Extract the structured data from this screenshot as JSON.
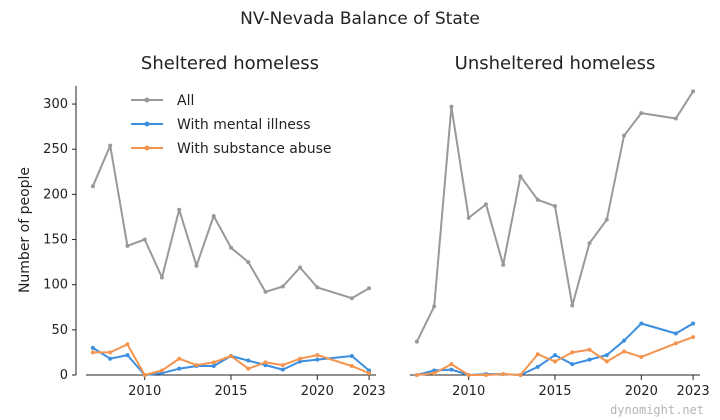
{
  "title": "NV-Nevada Balance of State",
  "ylabel": "Number of people",
  "watermark": "dynomight.net",
  "colors": {
    "All": "#999999",
    "With mental illness": "#3b8ee0",
    "With substance abuse": "#f5944e"
  },
  "chart_data": [
    {
      "type": "line",
      "title": "Sheltered homeless",
      "ylabel": "Number of people",
      "ylim": [
        0,
        320
      ],
      "yticks": [
        0,
        50,
        100,
        150,
        200,
        250,
        300
      ],
      "xlim": [
        2006.6,
        2023.4
      ],
      "xticks": [
        2010,
        2015,
        2020,
        2023
      ],
      "legend": {
        "placement": "top-left",
        "entries": [
          "All",
          "With mental illness",
          "With substance abuse"
        ]
      },
      "grid": false,
      "series": [
        {
          "name": "All",
          "color": "#999999",
          "x": [
            2007,
            2008,
            2009,
            2010,
            2011,
            2012,
            2013,
            2014,
            2015,
            2016,
            2017,
            2018,
            2019,
            2020,
            2022,
            2023
          ],
          "values": [
            209,
            254,
            143,
            150,
            108,
            183,
            121,
            176,
            141,
            125,
            92,
            98,
            119,
            97,
            85,
            96
          ]
        },
        {
          "name": "With mental illness",
          "color": "#3b8ee0",
          "x": [
            2007,
            2008,
            2009,
            2010,
            2011,
            2012,
            2013,
            2014,
            2015,
            2016,
            2017,
            2018,
            2019,
            2020,
            2022,
            2023
          ],
          "values": [
            30,
            18,
            22,
            0,
            2,
            7,
            10,
            10,
            21,
            16,
            11,
            6,
            15,
            17,
            21,
            5
          ]
        },
        {
          "name": "With substance abuse",
          "color": "#f5944e",
          "x": [
            2007,
            2008,
            2009,
            2010,
            2011,
            2012,
            2013,
            2014,
            2015,
            2016,
            2017,
            2018,
            2019,
            2020,
            2022,
            2023
          ],
          "values": [
            25,
            25,
            34,
            0,
            5,
            18,
            11,
            14,
            21,
            7,
            14,
            11,
            18,
            22,
            10,
            2
          ]
        }
      ]
    },
    {
      "type": "line",
      "title": "Unsheltered homeless",
      "ylim": [
        0,
        320
      ],
      "xlim": [
        2006.6,
        2023.4
      ],
      "xticks": [
        2010,
        2015,
        2020,
        2023
      ],
      "grid": false,
      "series": [
        {
          "name": "All",
          "color": "#999999",
          "x": [
            2007,
            2008,
            2009,
            2010,
            2011,
            2012,
            2013,
            2014,
            2015,
            2016,
            2017,
            2018,
            2019,
            2020,
            2022,
            2023
          ],
          "values": [
            37,
            76,
            297,
            174,
            189,
            122,
            220,
            194,
            187,
            77,
            146,
            172,
            265,
            290,
            284,
            314
          ]
        },
        {
          "name": "With mental illness",
          "color": "#3b8ee0",
          "x": [
            2007,
            2008,
            2009,
            2010,
            2011,
            2012,
            2013,
            2014,
            2015,
            2016,
            2017,
            2018,
            2019,
            2020,
            2022,
            2023
          ],
          "values": [
            0,
            5,
            6,
            0,
            1,
            1,
            0,
            9,
            22,
            12,
            17,
            22,
            38,
            57,
            46,
            57
          ]
        },
        {
          "name": "With substance abuse",
          "color": "#f5944e",
          "x": [
            2007,
            2008,
            2009,
            2010,
            2011,
            2012,
            2013,
            2014,
            2015,
            2016,
            2017,
            2018,
            2019,
            2020,
            2022,
            2023
          ],
          "values": [
            0,
            2,
            12,
            0,
            0,
            1,
            0,
            23,
            15,
            25,
            28,
            15,
            26,
            20,
            35,
            42
          ]
        }
      ]
    }
  ]
}
